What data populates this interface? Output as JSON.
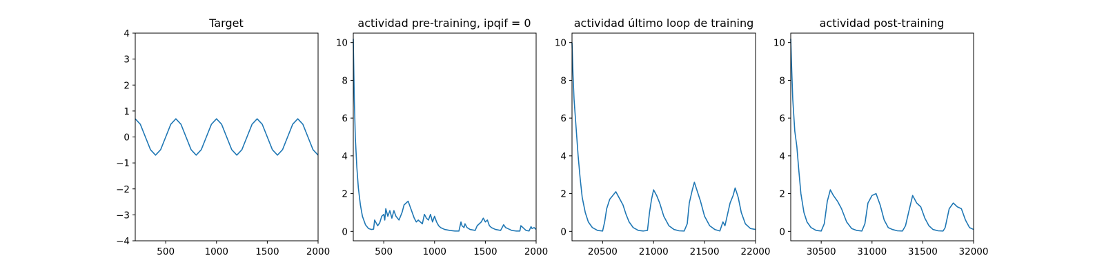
{
  "line_color": "#1f77b4",
  "chart_data": [
    {
      "type": "line",
      "title": "Target",
      "xlabel": "",
      "ylabel": "",
      "xlim": [
        200,
        2000
      ],
      "ylim": [
        -4,
        4
      ],
      "xticks": [
        500,
        1000,
        1500,
        2000
      ],
      "xtick_labels": [
        "500",
        "1000",
        "1500",
        "2000"
      ],
      "yticks": [
        -4,
        -3,
        -2,
        -1,
        0,
        1,
        2,
        3,
        4
      ],
      "ytick_labels": [
        "−4",
        "−3",
        "−2",
        "−1",
        "0",
        "1",
        "2",
        "3",
        "4"
      ],
      "grid": false,
      "series": [
        {
          "x": [
            200,
            250,
            300,
            350,
            400,
            450,
            500,
            550,
            600,
            650,
            700,
            750,
            800,
            850,
            900,
            950,
            1000,
            1050,
            1100,
            1150,
            1200,
            1250,
            1300,
            1350,
            1400,
            1450,
            1500,
            1550,
            1600,
            1650,
            1700,
            1750,
            1800,
            1850,
            1900,
            1950,
            2000
          ],
          "y": [
            0.7,
            0.49,
            0.0,
            -0.49,
            -0.7,
            -0.49,
            0.0,
            0.49,
            0.7,
            0.49,
            0.0,
            -0.49,
            -0.7,
            -0.49,
            0.0,
            0.49,
            0.7,
            0.49,
            0.0,
            -0.49,
            -0.7,
            -0.49,
            0.0,
            0.49,
            0.7,
            0.49,
            0.0,
            -0.49,
            -0.7,
            -0.49,
            0.0,
            0.49,
            0.7,
            0.49,
            0.0,
            -0.49,
            -0.7
          ]
        }
      ]
    },
    {
      "type": "line",
      "title": "actividad pre-training, ipqif = 0",
      "xlabel": "",
      "ylabel": "",
      "xlim": [
        200,
        2000
      ],
      "ylim": [
        -0.5,
        10.5
      ],
      "xticks": [
        500,
        1000,
        1500,
        2000
      ],
      "xtick_labels": [
        "500",
        "1000",
        "1500",
        "2000"
      ],
      "yticks": [
        0,
        2,
        4,
        6,
        8,
        10
      ],
      "ytick_labels": [
        "0",
        "2",
        "4",
        "6",
        "8",
        "10"
      ],
      "grid": false,
      "series": [
        {
          "x": [
            200,
            210,
            220,
            235,
            250,
            270,
            290,
            320,
            350,
            380,
            400,
            410,
            420,
            440,
            460,
            480,
            500,
            510,
            520,
            540,
            560,
            580,
            600,
            620,
            650,
            680,
            700,
            720,
            740,
            760,
            780,
            800,
            820,
            840,
            860,
            880,
            900,
            920,
            940,
            960,
            980,
            1000,
            1020,
            1040,
            1060,
            1100,
            1150,
            1200,
            1240,
            1260,
            1270,
            1290,
            1300,
            1320,
            1350,
            1400,
            1420,
            1440,
            1460,
            1480,
            1500,
            1520,
            1540,
            1560,
            1600,
            1650,
            1680,
            1700,
            1720,
            1760,
            1800,
            1840,
            1850,
            1880,
            1900,
            1930,
            1950,
            1960,
            1980,
            2000
          ],
          "y": [
            10.2,
            7.0,
            5.0,
            3.4,
            2.3,
            1.4,
            0.8,
            0.35,
            0.15,
            0.1,
            0.12,
            0.6,
            0.5,
            0.3,
            0.45,
            0.8,
            0.9,
            0.6,
            1.2,
            0.8,
            1.1,
            0.7,
            1.1,
            0.8,
            0.6,
            1.0,
            1.4,
            1.5,
            1.6,
            1.3,
            1.0,
            0.7,
            0.5,
            0.6,
            0.5,
            0.4,
            0.9,
            0.7,
            0.6,
            0.9,
            0.5,
            0.8,
            0.5,
            0.3,
            0.2,
            0.1,
            0.05,
            0.02,
            0.02,
            0.5,
            0.3,
            0.2,
            0.4,
            0.2,
            0.1,
            0.05,
            0.3,
            0.4,
            0.5,
            0.7,
            0.5,
            0.6,
            0.3,
            0.2,
            0.1,
            0.05,
            0.35,
            0.2,
            0.15,
            0.05,
            0.02,
            0.02,
            0.3,
            0.15,
            0.05,
            0.02,
            0.25,
            0.15,
            0.2,
            0.1
          ]
        }
      ]
    },
    {
      "type": "line",
      "title": "actividad último loop de training",
      "xlabel": "",
      "ylabel": "",
      "xlim": [
        20200,
        22000
      ],
      "ylim": [
        -0.5,
        10.5
      ],
      "xticks": [
        20500,
        21000,
        21500,
        22000
      ],
      "xtick_labels": [
        "20500",
        "21000",
        "21500",
        "22000"
      ],
      "yticks": [
        0,
        2,
        4,
        6,
        8,
        10
      ],
      "ytick_labels": [
        "0",
        "2",
        "4",
        "6",
        "8",
        "10"
      ],
      "grid": false,
      "series": [
        {
          "x": [
            20200,
            20210,
            20220,
            20240,
            20260,
            20280,
            20300,
            20330,
            20360,
            20400,
            20450,
            20500,
            20520,
            20540,
            20570,
            20600,
            20630,
            20660,
            20700,
            20730,
            20760,
            20800,
            20850,
            20900,
            20940,
            20960,
            20980,
            21000,
            21030,
            21060,
            21100,
            21150,
            21200,
            21250,
            21300,
            21330,
            21350,
            21380,
            21400,
            21430,
            21460,
            21500,
            21550,
            21600,
            21650,
            21680,
            21700,
            21750,
            21780,
            21800,
            21830,
            21860,
            21900,
            21950,
            22000
          ],
          "y": [
            10.0,
            8.3,
            7.0,
            5.5,
            4.0,
            2.8,
            1.8,
            1.0,
            0.5,
            0.2,
            0.05,
            0.02,
            0.5,
            1.2,
            1.7,
            1.9,
            2.1,
            1.8,
            1.4,
            0.9,
            0.5,
            0.2,
            0.05,
            0.02,
            0.05,
            1.0,
            1.7,
            2.2,
            1.9,
            1.5,
            0.8,
            0.3,
            0.1,
            0.03,
            0.02,
            0.4,
            1.5,
            2.2,
            2.6,
            2.1,
            1.6,
            0.8,
            0.3,
            0.1,
            0.02,
            0.5,
            0.3,
            1.5,
            1.9,
            2.3,
            1.8,
            1.0,
            0.4,
            0.15,
            0.1
          ]
        }
      ]
    },
    {
      "type": "line",
      "title": "actividad post-training",
      "xlabel": "",
      "ylabel": "",
      "xlim": [
        30200,
        32000
      ],
      "ylim": [
        -0.5,
        10.5
      ],
      "xticks": [
        30500,
        31000,
        31500,
        32000
      ],
      "xtick_labels": [
        "30500",
        "31000",
        "31500",
        "32000"
      ],
      "yticks": [
        0,
        2,
        4,
        6,
        8,
        10
      ],
      "ytick_labels": [
        "0",
        "2",
        "4",
        "6",
        "8",
        "10"
      ],
      "grid": false,
      "series": [
        {
          "x": [
            30200,
            30210,
            30220,
            30240,
            30260,
            30280,
            30300,
            30330,
            30360,
            30400,
            30450,
            30500,
            30530,
            30560,
            30590,
            30620,
            30660,
            30700,
            30750,
            30800,
            30850,
            30900,
            30930,
            30960,
            31000,
            31040,
            31080,
            31120,
            31160,
            31200,
            31250,
            31300,
            31330,
            31360,
            31400,
            31440,
            31480,
            31520,
            31560,
            31600,
            31650,
            31700,
            31720,
            31760,
            31800,
            31840,
            31880,
            31920,
            31960,
            32000
          ],
          "y": [
            10.2,
            8.5,
            7.0,
            5.3,
            4.5,
            3.2,
            2.0,
            1.0,
            0.5,
            0.2,
            0.05,
            0.02,
            0.4,
            1.6,
            2.2,
            1.9,
            1.6,
            1.2,
            0.5,
            0.15,
            0.05,
            0.02,
            0.4,
            1.5,
            1.9,
            2.0,
            1.4,
            0.6,
            0.2,
            0.1,
            0.03,
            0.02,
            0.3,
            1.0,
            1.9,
            1.5,
            1.3,
            0.7,
            0.3,
            0.1,
            0.03,
            0.02,
            0.2,
            1.2,
            1.5,
            1.3,
            1.2,
            0.6,
            0.2,
            0.1
          ]
        }
      ]
    }
  ]
}
